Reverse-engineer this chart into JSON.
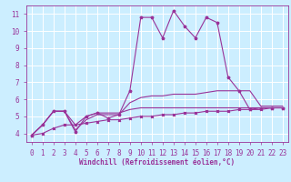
{
  "title": "",
  "xlabel": "Windchill (Refroidissement éolien,°C)",
  "background_color": "#cceeff",
  "grid_color": "#ffffff",
  "line_color": "#993399",
  "x_values": [
    0,
    1,
    2,
    3,
    4,
    5,
    6,
    7,
    8,
    9,
    10,
    11,
    12,
    13,
    14,
    15,
    16,
    17,
    18,
    19,
    20,
    21,
    22,
    23
  ],
  "series": [
    [
      3.9,
      4.5,
      5.3,
      5.3,
      4.1,
      5.0,
      5.2,
      4.9,
      5.1,
      6.5,
      10.8,
      10.8,
      9.6,
      11.2,
      10.3,
      9.6,
      10.8,
      10.5,
      7.3,
      6.5,
      5.4,
      5.5,
      5.5,
      5.5
    ],
    [
      3.9,
      4.5,
      5.3,
      5.3,
      4.2,
      4.8,
      5.1,
      5.1,
      5.1,
      5.8,
      6.1,
      6.2,
      6.2,
      6.3,
      6.3,
      6.3,
      6.4,
      6.5,
      6.5,
      6.5,
      6.5,
      5.6,
      5.6,
      5.6
    ],
    [
      3.9,
      4.5,
      5.3,
      5.3,
      4.5,
      5.0,
      5.2,
      5.2,
      5.2,
      5.4,
      5.5,
      5.5,
      5.5,
      5.5,
      5.5,
      5.5,
      5.5,
      5.5,
      5.5,
      5.5,
      5.5,
      5.5,
      5.5,
      5.5
    ],
    [
      3.9,
      4.0,
      4.3,
      4.5,
      4.5,
      4.6,
      4.7,
      4.8,
      4.8,
      4.9,
      5.0,
      5.0,
      5.1,
      5.1,
      5.2,
      5.2,
      5.3,
      5.3,
      5.3,
      5.4,
      5.4,
      5.4,
      5.5,
      5.5
    ]
  ],
  "ylim": [
    3.5,
    11.5
  ],
  "xlim": [
    -0.5,
    23.5
  ],
  "yticks": [
    4,
    5,
    6,
    7,
    8,
    9,
    10,
    11
  ],
  "xticks": [
    0,
    1,
    2,
    3,
    4,
    5,
    6,
    7,
    8,
    9,
    10,
    11,
    12,
    13,
    14,
    15,
    16,
    17,
    18,
    19,
    20,
    21,
    22,
    23
  ],
  "tick_fontsize": 5.5,
  "xlabel_fontsize": 5.5
}
